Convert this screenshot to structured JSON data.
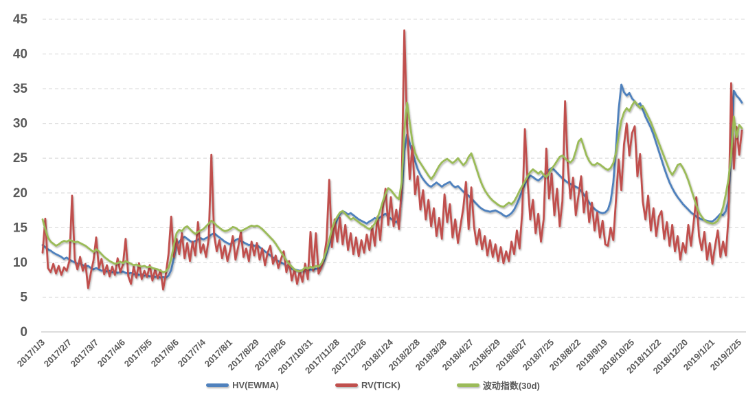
{
  "colors": {
    "background": "#FFFFFF",
    "axis_text": "#595959",
    "gridline": "#D9D9D9",
    "axis_line": "#C6C6C6",
    "series_blue": "#4F81BD",
    "series_red": "#C0504D",
    "series_green": "#9BBB59"
  },
  "chart_data": {
    "type": "line",
    "title": "",
    "legend_position": "bottom",
    "grid": {
      "horizontal": true,
      "vertical": false,
      "style": "dashed"
    },
    "y_axis": {
      "min": 0,
      "max": 45,
      "tick_step": 5,
      "tick_labels": [
        "0",
        "5",
        "10",
        "15",
        "20",
        "25",
        "30",
        "35",
        "40",
        "45"
      ]
    },
    "x_axis": {
      "unit": "trading days (series sampled every 2 trading days, ticks every 10 samples)",
      "ticks_every_n_points": 10,
      "tick_labels": [
        "2017/1/3",
        "2017/2/7",
        "2017/3/7",
        "2017/4/6",
        "2017/5/5",
        "2017/6/6",
        "2017/7/4",
        "2017/8/1",
        "2017/8/29",
        "2017/9/26",
        "2017/10/31",
        "2017/11/28",
        "2017/12/26",
        "2018/1/24",
        "2018/2/28",
        "2018/3/28",
        "2018/4/27",
        "2018/5/29",
        "2018/6/27",
        "2018/7/25",
        "2018/8/22",
        "2018/9/19",
        "2018/10/25",
        "2018/11/22",
        "2018/12/20",
        "2019/1/21",
        "2019/2/25"
      ]
    },
    "sample_step_trading_days": 2,
    "n_points": 262,
    "series": [
      {
        "id": "hv_ewma",
        "name": "HV(EWMA)",
        "color": "#4F81BD",
        "values": [
          12.5,
          12.2,
          11.9,
          11.7,
          11.4,
          11.2,
          11.0,
          10.8,
          10.5,
          10.7,
          10.4,
          10.2,
          10.0,
          9.8,
          9.9,
          9.6,
          9.4,
          9.5,
          9.2,
          9.0,
          9.2,
          9.0,
          8.8,
          8.9,
          8.7,
          8.8,
          8.6,
          8.7,
          8.5,
          8.6,
          8.7,
          8.5,
          8.4,
          8.5,
          8.3,
          8.4,
          8.2,
          8.3,
          8.1,
          8.2,
          8.0,
          8.1,
          7.9,
          8.0,
          7.8,
          7.9,
          7.8,
          8.1,
          8.9,
          10.6,
          12.4,
          13.0,
          13.4,
          13.7,
          13.4,
          13.1,
          12.9,
          13.1,
          13.3,
          13.5,
          13.3,
          13.5,
          13.7,
          14.0,
          14.2,
          13.9,
          13.6,
          13.3,
          13.0,
          12.8,
          12.6,
          12.9,
          13.2,
          13.4,
          13.1,
          12.9,
          12.7,
          12.5,
          12.6,
          12.4,
          12.5,
          12.2,
          11.9,
          11.6,
          11.3,
          11.0,
          10.7,
          10.4,
          10.2,
          10.0,
          9.8,
          9.5,
          9.3,
          9.1,
          9.0,
          8.9,
          8.8,
          8.9,
          8.7,
          8.8,
          9.0,
          8.9,
          9.1,
          9.0,
          9.4,
          10.2,
          11.3,
          12.6,
          14.0,
          15.2,
          16.2,
          17.0,
          17.4,
          17.2,
          16.9,
          17.1,
          16.8,
          16.5,
          16.2,
          16.0,
          15.8,
          15.6,
          15.9,
          16.1,
          16.4,
          16.2,
          16.5,
          16.8,
          17.0,
          16.6,
          16.3,
          16.0,
          15.8,
          16.2,
          19.5,
          26.0,
          28.4,
          27.2,
          25.8,
          24.6,
          23.4,
          22.6,
          22.0,
          21.5,
          21.1,
          20.9,
          21.2,
          21.5,
          21.2,
          20.9,
          21.2,
          21.4,
          21.6,
          21.1,
          20.8,
          21.0,
          20.6,
          20.2,
          19.9,
          19.6,
          19.2,
          18.8,
          18.4,
          18.0,
          17.7,
          17.5,
          17.4,
          17.3,
          17.4,
          17.5,
          17.3,
          17.1,
          16.8,
          16.6,
          16.8,
          17.1,
          17.6,
          18.4,
          19.3,
          20.3,
          21.3,
          22.0,
          22.5,
          22.3,
          22.0,
          21.8,
          22.1,
          22.5,
          22.9,
          23.3,
          23.6,
          23.3,
          22.9,
          22.5,
          22.1,
          21.8,
          21.5,
          21.3,
          21.1,
          20.9,
          20.7,
          20.3,
          19.8,
          19.2,
          18.6,
          18.1,
          17.7,
          17.4,
          17.2,
          17.1,
          17.2,
          17.6,
          18.8,
          21.5,
          26.5,
          32.0,
          35.6,
          34.5,
          34.0,
          34.4,
          33.6,
          33.2,
          32.6,
          32.9,
          32.0,
          31.0,
          30.2,
          29.4,
          28.4,
          27.2,
          26.0,
          24.8,
          23.6,
          22.5,
          21.5,
          20.7,
          20.0,
          19.4,
          18.9,
          18.4,
          18.0,
          17.6,
          17.2,
          16.9,
          16.6,
          16.4,
          16.2,
          16.1,
          16.0,
          15.9,
          15.9,
          16.2,
          16.6,
          17.0,
          16.8,
          17.4,
          19.0,
          26.0,
          34.7,
          34.0,
          33.6,
          33.0
        ]
      },
      {
        "id": "rv_tick",
        "name": "RV(TICK)",
        "color": "#C0504D",
        "values": [
          11.4,
          16.3,
          9.2,
          8.6,
          9.8,
          8.4,
          9.5,
          8.2,
          9.3,
          8.8,
          10.2,
          19.6,
          10.5,
          9.0,
          10.8,
          8.8,
          9.8,
          6.3,
          8.5,
          10.3,
          13.6,
          9.2,
          10.5,
          8.3,
          9.6,
          8.0,
          9.4,
          8.2,
          10.6,
          8.6,
          9.7,
          13.4,
          8.0,
          6.9,
          9.4,
          7.8,
          9.9,
          7.6,
          8.8,
          7.9,
          9.6,
          7.4,
          9.0,
          7.7,
          8.9,
          6.1,
          8.3,
          11.2,
          16.6,
          10.8,
          13.4,
          11.2,
          14.2,
          10.6,
          12.8,
          10.2,
          13.0,
          11.0,
          15.8,
          11.4,
          12.6,
          10.8,
          13.4,
          25.5,
          14.0,
          11.6,
          13.2,
          10.6,
          12.4,
          10.2,
          11.8,
          13.8,
          10.4,
          12.2,
          14.4,
          10.8,
          12.0,
          10.2,
          13.0,
          11.0,
          12.8,
          10.4,
          12.0,
          9.6,
          11.4,
          12.4,
          9.8,
          11.0,
          9.2,
          10.5,
          11.6,
          8.6,
          10.2,
          7.4,
          9.0,
          6.9,
          8.8,
          7.2,
          9.8,
          7.6,
          14.4,
          8.8,
          14.2,
          8.4,
          9.2,
          10.6,
          13.2,
          21.9,
          12.2,
          16.2,
          13.0,
          16.4,
          12.6,
          15.4,
          11.8,
          14.2,
          11.2,
          13.6,
          10.9,
          13.2,
          11.4,
          14.0,
          11.8,
          15.2,
          12.4,
          16.6,
          13.2,
          17.8,
          20.6,
          15.4,
          19.4,
          15.2,
          17.6,
          14.8,
          21.0,
          43.4,
          30.0,
          22.0,
          26.8,
          19.8,
          22.4,
          17.6,
          20.4,
          16.2,
          19.0,
          15.2,
          17.8,
          13.8,
          16.4,
          13.4,
          19.8,
          15.8,
          18.4,
          13.6,
          16.2,
          12.8,
          15.4,
          17.8,
          21.6,
          14.8,
          20.8,
          15.2,
          12.6,
          14.8,
          11.9,
          13.8,
          11.0,
          13.2,
          10.8,
          12.6,
          10.2,
          12.2,
          9.9,
          11.6,
          10.2,
          13.0,
          11.2,
          14.6,
          12.0,
          17.2,
          29.2,
          21.8,
          16.2,
          19.0,
          14.2,
          17.0,
          13.0,
          16.2,
          26.4,
          19.2,
          22.8,
          16.8,
          20.6,
          15.2,
          18.8,
          33.2,
          24.0,
          19.2,
          22.2,
          16.8,
          19.6,
          22.4,
          17.2,
          20.2,
          15.8,
          18.6,
          14.6,
          17.2,
          13.6,
          16.0,
          12.6,
          12.4,
          15.0,
          13.2,
          19.0,
          24.8,
          20.4,
          27.0,
          30.0,
          25.4,
          28.6,
          29.6,
          22.4,
          25.6,
          18.8,
          16.2,
          19.6,
          14.6,
          17.8,
          13.8,
          16.6,
          17.4,
          13.4,
          15.8,
          12.4,
          15.4,
          11.6,
          13.8,
          10.4,
          12.8,
          11.4,
          15.4,
          12.4,
          15.8,
          19.4,
          13.8,
          11.8,
          14.4,
          10.4,
          12.8,
          9.8,
          12.4,
          14.6,
          10.8,
          13.0,
          11.0,
          16.5,
          35.8,
          23.5,
          29.5,
          25.5,
          29.0
        ]
      },
      {
        "id": "volatility_index_30d",
        "name": "波动指数(30d)",
        "color": "#9BBB59",
        "values": [
          16.2,
          14.8,
          13.6,
          13.0,
          12.7,
          12.4,
          12.6,
          12.9,
          13.1,
          13.0,
          13.2,
          13.1,
          12.9,
          13.0,
          12.8,
          12.6,
          12.4,
          12.1,
          11.8,
          11.5,
          11.9,
          11.6,
          11.2,
          10.8,
          10.5,
          10.2,
          10.0,
          9.8,
          9.9,
          10.1,
          9.9,
          10.2,
          10.0,
          9.8,
          9.6,
          9.7,
          9.5,
          9.4,
          9.5,
          9.3,
          9.4,
          9.2,
          9.1,
          9.0,
          8.8,
          8.6,
          8.7,
          9.2,
          10.5,
          12.5,
          14.2,
          14.7,
          14.5,
          15.0,
          15.2,
          14.8,
          14.4,
          14.1,
          14.4,
          14.6,
          14.8,
          15.2,
          15.6,
          16.0,
          15.7,
          15.3,
          15.0,
          14.7,
          14.5,
          14.6,
          14.8,
          15.1,
          15.0,
          14.7,
          14.5,
          14.7,
          14.9,
          15.1,
          15.3,
          15.2,
          15.3,
          15.1,
          14.8,
          14.4,
          14.0,
          13.6,
          13.2,
          12.7,
          12.1,
          11.5,
          10.9,
          10.3,
          9.8,
          9.4,
          9.0,
          8.8,
          8.7,
          8.9,
          9.3,
          9.1,
          9.4,
          9.2,
          9.5,
          9.4,
          9.8,
          10.6,
          11.8,
          13.2,
          14.8,
          15.9,
          16.6,
          17.2,
          17.4,
          17.0,
          16.6,
          16.2,
          16.4,
          16.1,
          15.8,
          15.5,
          15.3,
          15.0,
          14.8,
          15.1,
          15.6,
          16.4,
          17.5,
          18.8,
          19.9,
          20.7,
          20.4,
          19.9,
          19.4,
          19.1,
          21.5,
          29.0,
          33.0,
          30.2,
          27.4,
          25.8,
          24.9,
          24.3,
          23.7,
          23.1,
          22.5,
          22.0,
          22.5,
          23.2,
          23.9,
          24.4,
          24.7,
          24.9,
          24.6,
          24.3,
          24.6,
          25.0,
          24.5,
          24.0,
          24.4,
          25.2,
          25.7,
          24.6,
          23.4,
          22.2,
          21.2,
          20.4,
          19.8,
          19.3,
          18.9,
          18.6,
          18.3,
          18.1,
          18.0,
          18.3,
          18.6,
          18.4,
          18.8,
          19.5,
          20.3,
          21.0,
          21.7,
          22.4,
          23.0,
          23.4,
          23.1,
          22.8,
          23.1,
          22.6,
          22.3,
          22.8,
          23.5,
          24.0,
          24.6,
          25.2,
          25.4,
          25.0,
          24.6,
          24.4,
          24.8,
          26.0,
          27.4,
          27.8,
          26.6,
          25.4,
          24.6,
          24.1,
          24.0,
          24.3,
          24.1,
          23.8,
          23.5,
          23.3,
          23.6,
          24.3,
          25.8,
          28.2,
          30.4,
          31.6,
          32.2,
          31.8,
          32.6,
          33.2,
          32.7,
          32.2,
          32.5,
          31.8,
          31.0,
          30.2,
          29.2,
          28.2,
          27.2,
          26.2,
          25.2,
          24.2,
          23.2,
          22.6,
          23.2,
          24.0,
          24.2,
          23.6,
          22.8,
          21.8,
          20.6,
          19.4,
          18.2,
          17.2,
          16.6,
          16.1,
          15.8,
          15.7,
          15.6,
          15.7,
          16.0,
          16.8,
          18.0,
          19.8,
          22.0,
          25.5,
          31.0,
          28.0,
          29.8,
          29.3
        ]
      }
    ]
  }
}
